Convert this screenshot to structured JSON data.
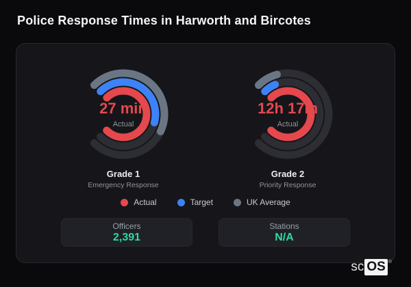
{
  "page": {
    "title": "Police Response Times in Harworth and Bircotes"
  },
  "brand": {
    "prefix": "sc",
    "badge": "OS",
    "registered": "®"
  },
  "colors": {
    "background": "#0a0a0d",
    "card_background": "#16161a",
    "track": "#2d2d34",
    "actual": "#e5484d",
    "target": "#3d82f6",
    "uk_average": "#6b7685",
    "stat_value": "#2bdba2"
  },
  "chart_data": {
    "type": "radial-gauge",
    "gauge_span_deg": 270,
    "start_clock_position": "10:30",
    "legend_position": "bottom-center",
    "legend": [
      {
        "label": "Actual",
        "color": "#e5484d"
      },
      {
        "label": "Target",
        "color": "#3d82f6"
      },
      {
        "label": "UK Average",
        "color": "#6b7685"
      }
    ],
    "gauges": [
      {
        "label": "Grade 1",
        "sublabel": "Emergency Response",
        "center_value": "27 min",
        "center_caption": "Actual",
        "rings": [
          {
            "name": "UK Average",
            "color": "#6b7685",
            "sweep_deg": 160
          },
          {
            "name": "Target",
            "color": "#3d82f6",
            "sweep_deg": 150
          },
          {
            "name": "Actual",
            "color": "#e5484d",
            "sweep_deg": 270
          }
        ]
      },
      {
        "label": "Grade 2",
        "sublabel": "Priority Response",
        "center_value": "12h 17m",
        "center_caption": "Actual",
        "rings": [
          {
            "name": "UK Average",
            "color": "#6b7685",
            "sweep_deg": 30
          },
          {
            "name": "Target",
            "color": "#3d82f6",
            "sweep_deg": 22
          },
          {
            "name": "Actual",
            "color": "#e5484d",
            "sweep_deg": 270
          }
        ]
      }
    ]
  },
  "stats": [
    {
      "label": "Officers",
      "value": "2,391"
    },
    {
      "label": "Stations",
      "value": "N/A"
    }
  ]
}
